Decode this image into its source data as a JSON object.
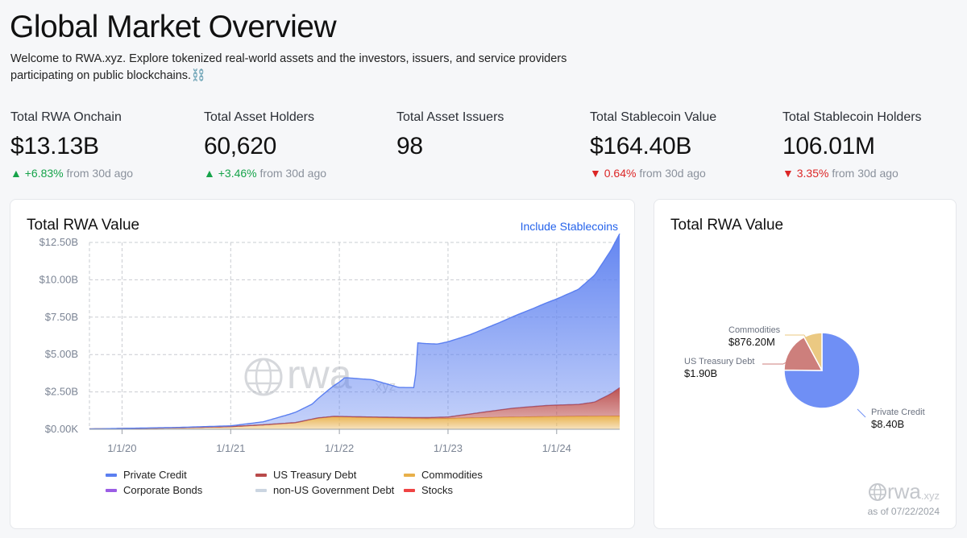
{
  "header": {
    "title": "Global Market Overview",
    "intro": "Welcome to RWA.xyz. Explore tokenized real-world assets and the investors, issuers, and service providers participating on public blockchains.⛓️"
  },
  "stats": [
    {
      "label": "Total RWA Onchain",
      "value": "$13.13B",
      "arrow": "▲",
      "change": "+6.83%",
      "suffix": "from 30d ago",
      "direction": "up"
    },
    {
      "label": "Total Asset Holders",
      "value": "60,620",
      "arrow": "▲",
      "change": "+3.46%",
      "suffix": "from 30d ago",
      "direction": "up"
    },
    {
      "label": "Total Asset Issuers",
      "value": "98",
      "arrow": "",
      "change": "",
      "suffix": "",
      "direction": "none"
    },
    {
      "label": "Total Stablecoin Value",
      "value": "$164.40B",
      "arrow": "▼",
      "change": "0.64%",
      "suffix": "from 30d ago",
      "direction": "down"
    },
    {
      "label": "Total Stablecoin Holders",
      "value": "106.01M",
      "arrow": "▼",
      "change": "3.35%",
      "suffix": "from 30d ago",
      "direction": "down"
    }
  ],
  "colors": {
    "private_credit": "#5b7ff0",
    "us_treasury": "#b94a4a",
    "commodities": "#e8b04a",
    "corporate_bonds": "#9b5de5",
    "non_us_gov": "#cbd5e1",
    "stocks": "#ef4444",
    "accent": "#2563eb"
  },
  "main_card": {
    "title": "Total RWA Value",
    "toggle_label": "Include Stablecoins",
    "watermark": "rwa",
    "watermark_suffix": ".xyz"
  },
  "pie_card": {
    "title": "Total RWA Value",
    "watermark": "rwa",
    "watermark_suffix": ".xyz",
    "as_of": "as of 07/22/2024"
  },
  "chart_data": [
    {
      "type": "area",
      "title": "Total RWA Value",
      "stacked": true,
      "x_ticks": [
        "1/1/20",
        "1/1/21",
        "1/1/22",
        "1/1/23",
        "1/1/24"
      ],
      "y_ticks": [
        "$0.00K",
        "$2.50B",
        "$5.00B",
        "$7.50B",
        "$10.00B",
        "$12.50B"
      ],
      "ylim": [
        0,
        12.5
      ],
      "xlim": [
        2019.7,
        2024.58
      ],
      "y_unit": "billions USD",
      "legend": [
        "Private Credit",
        "US Treasury Debt",
        "Commodities",
        "Corporate Bonds",
        "non-US Government Debt",
        "Stocks"
      ],
      "series": [
        {
          "name": "Commodities",
          "color": "#e8b04a",
          "x": [
            2019.7,
            2020.0,
            2020.5,
            2021.0,
            2021.3,
            2021.6,
            2021.8,
            2021.95,
            2022.2,
            2022.5,
            2022.8,
            2023.0,
            2023.5,
            2024.0,
            2024.58
          ],
          "y": [
            0.02,
            0.05,
            0.1,
            0.18,
            0.3,
            0.45,
            0.75,
            0.85,
            0.8,
            0.75,
            0.7,
            0.72,
            0.8,
            0.85,
            0.88
          ]
        },
        {
          "name": "US Treasury Debt",
          "color": "#b94a4a",
          "x": [
            2019.7,
            2021.0,
            2021.6,
            2022.0,
            2022.5,
            2023.0,
            2023.3,
            2023.6,
            2023.9,
            2024.2,
            2024.35,
            2024.5,
            2024.58
          ],
          "y": [
            0,
            0,
            0,
            0.02,
            0.05,
            0.1,
            0.35,
            0.6,
            0.75,
            0.8,
            0.95,
            1.5,
            1.9
          ]
        },
        {
          "name": "Private Credit",
          "color": "#5b7ff0",
          "x": [
            2019.7,
            2020.5,
            2021.0,
            2021.3,
            2021.55,
            2021.75,
            2021.9,
            2022.0,
            2022.05,
            2022.3,
            2022.55,
            2022.7,
            2022.71,
            2022.9,
            2023.2,
            2023.5,
            2023.8,
            2024.0,
            2024.2,
            2024.35,
            2024.5,
            2024.58
          ],
          "y": [
            0,
            0.02,
            0.05,
            0.2,
            0.6,
            1.0,
            1.8,
            2.3,
            2.6,
            2.5,
            2.0,
            2.0,
            5.0,
            4.9,
            5.3,
            5.9,
            6.6,
            7.1,
            7.7,
            8.5,
            9.6,
            10.3
          ]
        }
      ]
    },
    {
      "type": "pie",
      "title": "Total RWA Value",
      "slices": [
        {
          "label": "Private Credit",
          "value": 8.4,
          "display": "$8.40B",
          "color": "#6f8ff5"
        },
        {
          "label": "US Treasury Debt",
          "value": 1.9,
          "display": "$1.90B",
          "color": "#cd7f7c"
        },
        {
          "label": "Commodities",
          "value": 0.8762,
          "display": "$876.20M",
          "color": "#ebc982"
        }
      ]
    }
  ]
}
